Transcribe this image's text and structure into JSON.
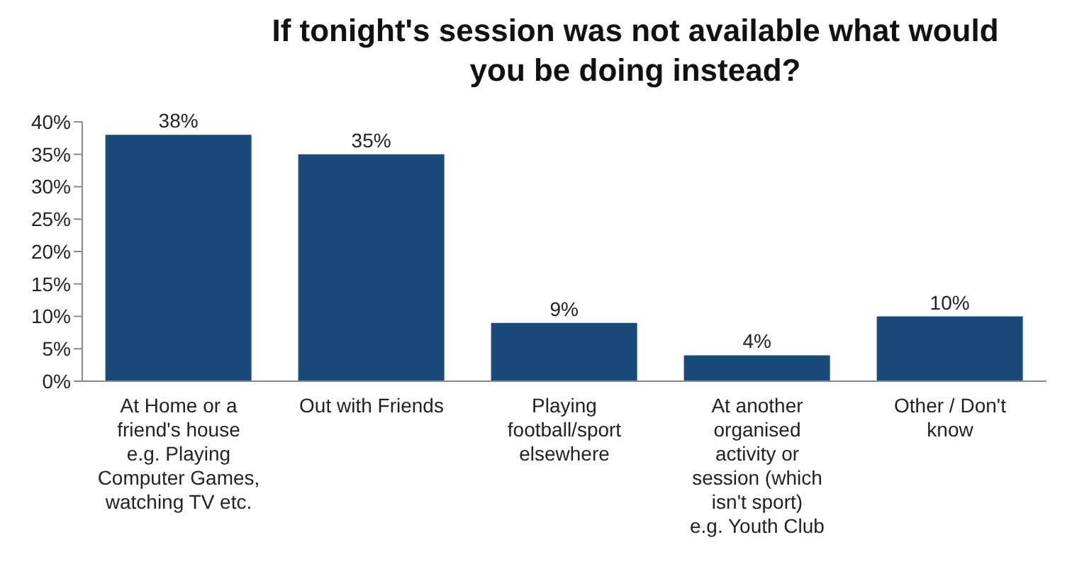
{
  "chart_data": {
    "type": "bar",
    "title": "If tonight's session was not available what would you be doing instead?",
    "categories": [
      "At Home or a friend's house e.g. Playing Computer Games, watching TV etc.",
      "Out with Friends",
      "Playing football/sport elsewhere",
      "At another organised activity or session (which isn't sport) e.g. Youth Club",
      "Other / Don't know"
    ],
    "values": [
      38,
      35,
      9,
      4,
      10
    ],
    "color": "#1a4a7a",
    "ylim": [
      0,
      40
    ],
    "yticks": [
      {
        "value": 0,
        "label": "0%"
      },
      {
        "value": 5,
        "label": "5%"
      },
      {
        "value": 10,
        "label": "10%"
      },
      {
        "value": 15,
        "label": "15%"
      },
      {
        "value": 20,
        "label": "20%"
      },
      {
        "value": 25,
        "label": "25%"
      },
      {
        "value": 30,
        "label": "30%"
      },
      {
        "value": 35,
        "label": "35%"
      },
      {
        "value": 40,
        "label": "40%"
      }
    ],
    "value_labels": [
      "38%",
      "35%",
      "9%",
      "4%",
      "10%"
    ],
    "grid": false
  }
}
